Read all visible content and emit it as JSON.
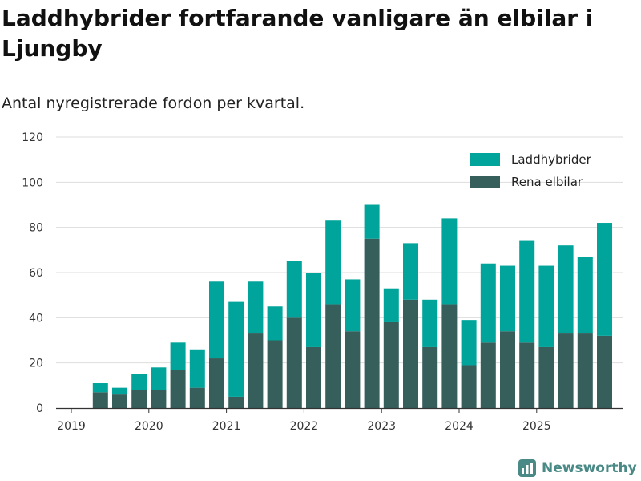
{
  "title": "Laddhybrider fortfarande vanligare än elbilar i Ljungby",
  "subtitle": "Antal nyregistrerade fordon per kvartal.",
  "brand": {
    "name": "Newsworthy",
    "icon": "newsworthy-logo-icon"
  },
  "colors": {
    "laddhybrider": "#00a49a",
    "rena_elbilar": "#365f5b",
    "grid": "#dddddd",
    "axis": "#333333"
  },
  "chart_data": {
    "type": "bar",
    "stacked": true,
    "title": "Laddhybrider fortfarande vanligare än elbilar i Ljungby",
    "subtitle": "Antal nyregistrerade fordon per kvartal.",
    "xlabel": "",
    "ylabel": "",
    "ylim": [
      0,
      120
    ],
    "yticks": [
      0,
      20,
      40,
      60,
      80,
      100,
      120
    ],
    "xticks": [
      "2019",
      "2020",
      "2021",
      "2022",
      "2023",
      "2024",
      "2025"
    ],
    "grid": true,
    "legend_position": "top-right",
    "categories": [
      "2019-Q2",
      "2019-Q3",
      "2019-Q4",
      "2020-Q1",
      "2020-Q2",
      "2020-Q3",
      "2020-Q4",
      "2021-Q1",
      "2021-Q2",
      "2021-Q3",
      "2021-Q4",
      "2022-Q1",
      "2022-Q2",
      "2022-Q3",
      "2022-Q4",
      "2023-Q1",
      "2023-Q2",
      "2023-Q3",
      "2023-Q4",
      "2024-Q1",
      "2024-Q2",
      "2024-Q3",
      "2024-Q4",
      "2025-Q1",
      "2025-Q2",
      "2025-Q3",
      "2025-Q4"
    ],
    "series": [
      {
        "name": "Rena elbilar",
        "values": [
          7,
          6,
          8,
          8,
          17,
          9,
          22,
          5,
          33,
          30,
          40,
          27,
          46,
          34,
          75,
          38,
          48,
          27,
          46,
          19,
          29,
          34,
          29,
          27,
          33,
          33,
          32
        ]
      },
      {
        "name": "Laddhybrider",
        "values": [
          4,
          3,
          7,
          10,
          12,
          17,
          34,
          42,
          23,
          15,
          25,
          33,
          37,
          23,
          15,
          15,
          25,
          21,
          38,
          20,
          35,
          29,
          45,
          36,
          39,
          34,
          50
        ]
      }
    ]
  }
}
